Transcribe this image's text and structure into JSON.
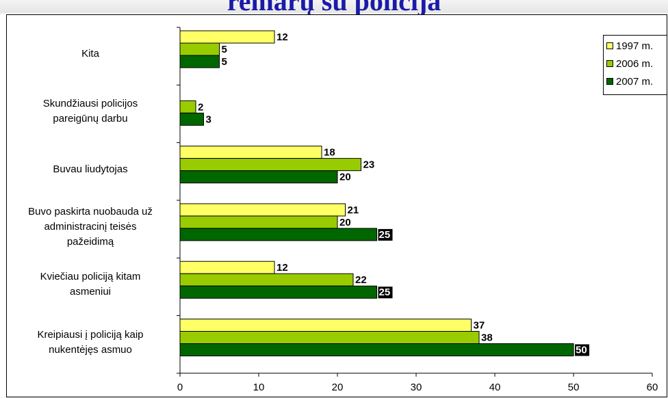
{
  "page": {
    "title": "remarų su policija"
  },
  "chart_data": {
    "type": "bar",
    "orientation": "horizontal",
    "categories": [
      "Kita",
      "Skundžiausi policijos pareigūnų darbu",
      "Buvau liudytojas",
      "Buvo paskirta nuobauda už administracinį teisės pažeidimą",
      "Kviečiau policiją kitam asmeniui",
      "Kreipiausi į policiją kaip nukentėjęs asmuo"
    ],
    "category_lines": [
      [
        "Kita"
      ],
      [
        "Skundžiausi policijos",
        "pareigūnų darbu"
      ],
      [
        "Buvau liudytojas"
      ],
      [
        "Buvo paskirta nuobauda už",
        "administracinį teisės",
        "pažeidimą"
      ],
      [
        "Kviečiau policiją kitam",
        "asmeniui"
      ],
      [
        "Kreipiausi į policiją kaip",
        "nukentėjęs asmuo"
      ]
    ],
    "series": [
      {
        "name": "1997 m.",
        "color": "#ffff66",
        "values": [
          12,
          null,
          18,
          21,
          12,
          37
        ]
      },
      {
        "name": "2006 m.",
        "color": "#99cc00",
        "values": [
          5,
          2,
          23,
          20,
          22,
          38
        ]
      },
      {
        "name": "2007 m.",
        "color": "#006600",
        "values": [
          5,
          3,
          20,
          25,
          25,
          50
        ]
      }
    ],
    "xlim": [
      0,
      60
    ],
    "xticks": [
      0,
      10,
      20,
      30,
      40,
      50,
      60
    ],
    "highlight_values": [
      25,
      25,
      50
    ],
    "legend_position": "top-right",
    "grid": false
  }
}
